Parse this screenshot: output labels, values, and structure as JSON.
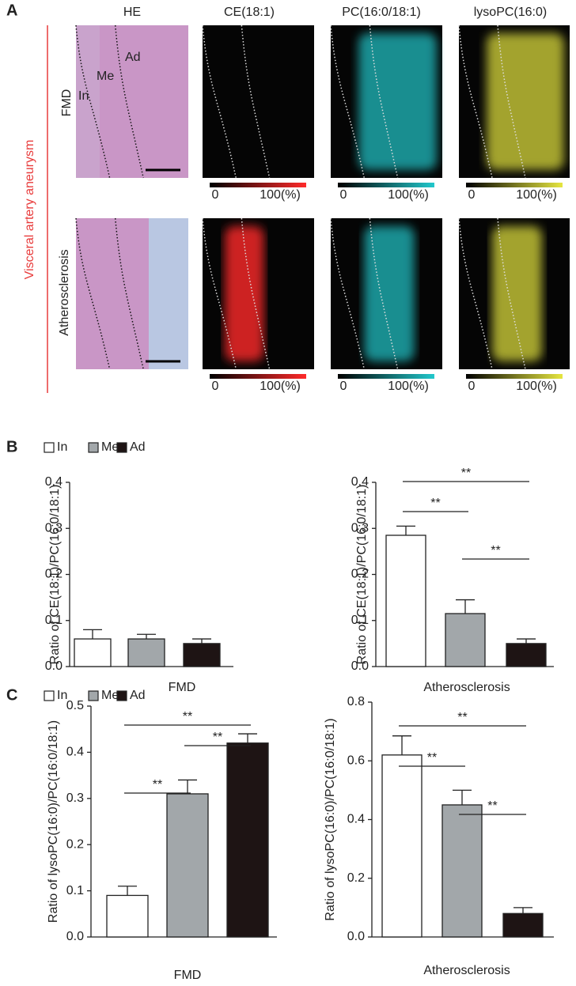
{
  "panel_a": {
    "label": "A",
    "columns": [
      "HE",
      "CE(18:1)",
      "PC(16:0/18:1)",
      "lysoPC(16:0)"
    ],
    "rows": [
      "FMD",
      "Atherosclerosis"
    ],
    "group": "Visceral artery aneurysm",
    "he_labels": [
      "In",
      "Me",
      "Ad"
    ],
    "colorbar_labels": [
      "0",
      "100(%)"
    ]
  },
  "panel_b": {
    "label": "B",
    "legend": [
      "In",
      "Me",
      "Ad"
    ]
  },
  "panel_c": {
    "label": "C",
    "legend": [
      "In",
      "Me",
      "Ad"
    ]
  },
  "chart_data": [
    {
      "type": "bar",
      "ylabel": "Ratio of CE(18:1)/PC(16:0/18:1)",
      "xlabel": "FMD",
      "values": [
        0.06,
        0.06,
        0.05
      ],
      "errors": [
        0.02,
        0.01,
        0.01
      ],
      "colors": [
        "#ffffff",
        "#a2a7aa",
        "#1e1414"
      ],
      "ylim": [
        0,
        0.4
      ],
      "yticks": [
        {
          "value": 0,
          "label": "0.0"
        },
        0.1,
        0.2,
        0.3,
        0.4
      ],
      "annotations": []
    },
    {
      "type": "bar",
      "ylabel": "Ratio of CE(18:1)/PC(16:0/18:1)",
      "xlabel": "Atherosclerosis",
      "values": [
        0.285,
        0.115,
        0.05
      ],
      "errors": [
        0.02,
        0.03,
        0.01
      ],
      "colors": [
        "#ffffff",
        "#a2a7aa",
        "#1e1414"
      ],
      "ylim": [
        0,
        0.4
      ],
      "yticks": [
        {
          "value": 0,
          "label": "0.0"
        },
        0.1,
        0.2,
        0.3,
        0.4
      ],
      "annotations": [
        {
          "from": 0,
          "to": 1,
          "text": "**"
        },
        {
          "from": 1,
          "to": 2,
          "text": "**"
        },
        {
          "from": 0,
          "to": 2,
          "text": "**"
        }
      ]
    },
    {
      "type": "bar",
      "ylabel": "Ratio of lysoPC(16:0)/PC(16:0/18:1)",
      "xlabel": "FMD",
      "values": [
        0.09,
        0.31,
        0.42
      ],
      "errors": [
        0.02,
        0.03,
        0.02
      ],
      "colors": [
        "#ffffff",
        "#a2a7aa",
        "#1e1414"
      ],
      "ylim": [
        0,
        0.5
      ],
      "yticks": [
        {
          "value": 0,
          "label": "0.0"
        },
        0.1,
        0.2,
        0.3,
        0.4,
        0.5
      ],
      "annotations": [
        {
          "from": 0,
          "to": 1,
          "text": "**"
        },
        {
          "from": 1,
          "to": 2,
          "text": "**"
        },
        {
          "from": 0,
          "to": 2,
          "text": "**"
        }
      ]
    },
    {
      "type": "bar",
      "ylabel": "Ratio of lysoPC(16:0)/PC(16:0/18:1)",
      "xlabel": "Atherosclerosis",
      "values": [
        0.62,
        0.45,
        0.08
      ],
      "errors": [
        0.065,
        0.05,
        0.02
      ],
      "colors": [
        "#ffffff",
        "#a2a7aa",
        "#1e1414"
      ],
      "ylim": [
        0,
        0.8
      ],
      "yticks": [
        {
          "value": 0,
          "label": "0.0"
        },
        0.2,
        0.4,
        0.6,
        0.8
      ],
      "annotations": [
        {
          "from": 0,
          "to": 1,
          "text": "**"
        },
        {
          "from": 1,
          "to": 2,
          "text": "**"
        },
        {
          "from": 0,
          "to": 2,
          "text": "**"
        }
      ]
    }
  ]
}
